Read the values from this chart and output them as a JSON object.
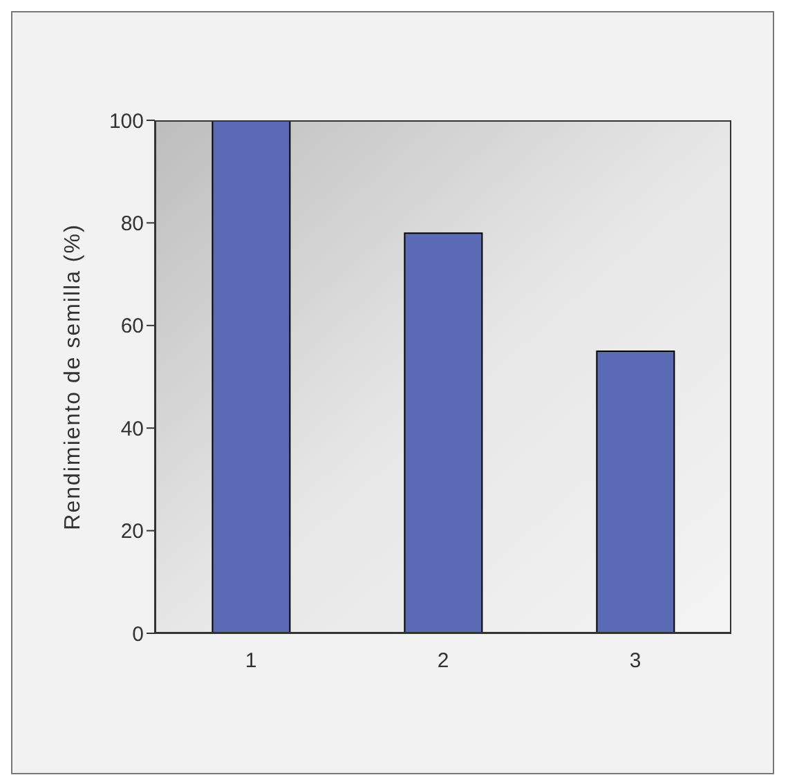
{
  "chart_data": {
    "type": "bar",
    "ylabel": "Rendimiento de semilla (%)",
    "categories": [
      "1",
      "2",
      "3"
    ],
    "values": [
      100,
      78,
      55
    ],
    "color": "#5a6ab4",
    "ylim": [
      0,
      100
    ],
    "yticks": [
      0,
      20,
      40,
      60,
      80,
      100
    ],
    "grid": false
  }
}
